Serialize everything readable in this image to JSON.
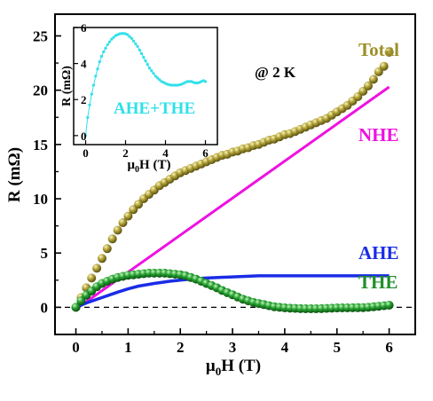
{
  "chart_data": [
    {
      "type": "line",
      "xlabel_main": "μ",
      "xlabel_sub": "0",
      "xlabel_rest": "H (T)",
      "ylabel": "R (mΩ)",
      "xlim": [
        -0.4,
        6.5
      ],
      "ylim": [
        -2.5,
        27
      ],
      "xticks": [
        "0",
        "1",
        "2",
        "3",
        "4",
        "5",
        "6"
      ],
      "yticks": [
        "0",
        "5",
        "10",
        "15",
        "20",
        "25"
      ],
      "annotation": "@ 2 K",
      "zero_line": "dashed",
      "series": [
        {
          "name": "Total",
          "marker": "sphere",
          "color": "#9c8f28",
          "x": [
            0,
            0.1,
            0.2,
            0.3,
            0.4,
            0.5,
            0.6,
            0.7,
            0.8,
            0.9,
            1.0,
            1.1,
            1.2,
            1.3,
            1.4,
            1.5,
            1.6,
            1.7,
            1.8,
            1.9,
            2.0,
            2.1,
            2.2,
            2.3,
            2.4,
            2.5,
            2.6,
            2.7,
            2.8,
            2.9,
            3.0,
            3.1,
            3.2,
            3.3,
            3.4,
            3.5,
            3.6,
            3.7,
            3.8,
            3.9,
            4.0,
            4.1,
            4.2,
            4.3,
            4.4,
            4.5,
            4.6,
            4.7,
            4.8,
            4.9,
            5.0,
            5.1,
            5.2,
            5.3,
            5.4,
            5.5,
            5.6,
            5.7,
            5.8,
            5.9,
            6.0
          ],
          "y": [
            0,
            0.9,
            1.8,
            2.7,
            3.6,
            4.5,
            5.4,
            6.3,
            7.1,
            7.8,
            8.4,
            9.0,
            9.5,
            10.0,
            10.4,
            10.8,
            11.2,
            11.5,
            11.8,
            12.1,
            12.4,
            12.6,
            12.8,
            13.0,
            13.2,
            13.4,
            13.6,
            13.8,
            14.0,
            14.1,
            14.3,
            14.4,
            14.6,
            14.7,
            14.9,
            15.0,
            15.2,
            15.4,
            15.5,
            15.7,
            15.9,
            16.0,
            16.2,
            16.4,
            16.6,
            16.8,
            17.0,
            17.2,
            17.4,
            17.7,
            18.0,
            18.3,
            18.6,
            19.0,
            19.4,
            19.9,
            20.4,
            21.0,
            21.7,
            22.2,
            23.5
          ]
        },
        {
          "name": "NHE",
          "marker": "line",
          "color": "#ee12e0",
          "x": [
            0.05,
            6.0
          ],
          "y": [
            0,
            20.3
          ]
        },
        {
          "name": "AHE",
          "marker": "line",
          "color": "#1a2ce6",
          "x": [
            0,
            0.2,
            0.5,
            0.8,
            1.0,
            1.2,
            1.5,
            1.8,
            2.0,
            2.3,
            2.5,
            3.0,
            3.5,
            4.0,
            5.0,
            6.0
          ],
          "y": [
            0,
            0.4,
            0.9,
            1.4,
            1.7,
            1.95,
            2.2,
            2.4,
            2.5,
            2.65,
            2.7,
            2.8,
            2.9,
            2.9,
            2.9,
            2.9
          ]
        },
        {
          "name": "THE",
          "marker": "sphere",
          "color": "#1f8f2a",
          "x": [
            0,
            0.1,
            0.2,
            0.3,
            0.4,
            0.5,
            0.6,
            0.7,
            0.8,
            0.9,
            1.0,
            1.1,
            1.2,
            1.3,
            1.4,
            1.5,
            1.6,
            1.7,
            1.8,
            1.9,
            2.0,
            2.1,
            2.2,
            2.3,
            2.4,
            2.5,
            2.6,
            2.7,
            2.8,
            2.9,
            3.0,
            3.1,
            3.2,
            3.3,
            3.4,
            3.5,
            3.6,
            3.7,
            3.8,
            3.9,
            4.0,
            4.1,
            4.2,
            4.3,
            4.4,
            4.5,
            4.6,
            4.7,
            4.8,
            4.9,
            5.0,
            5.1,
            5.2,
            5.3,
            5.4,
            5.5,
            5.6,
            5.7,
            5.8,
            5.9,
            6.0
          ],
          "y": [
            0,
            0.6,
            1.1,
            1.5,
            1.9,
            2.2,
            2.4,
            2.6,
            2.75,
            2.85,
            2.95,
            3.0,
            3.05,
            3.1,
            3.15,
            3.15,
            3.15,
            3.15,
            3.1,
            3.05,
            3.0,
            2.9,
            2.75,
            2.6,
            2.4,
            2.2,
            2.0,
            1.8,
            1.55,
            1.35,
            1.15,
            0.95,
            0.75,
            0.6,
            0.45,
            0.35,
            0.25,
            0.15,
            0.05,
            0.0,
            -0.05,
            -0.08,
            -0.1,
            -0.12,
            -0.13,
            -0.13,
            -0.13,
            -0.12,
            -0.1,
            -0.08,
            -0.06,
            -0.05,
            -0.05,
            -0.04,
            -0.03,
            -0.02,
            0.0,
            0.05,
            0.1,
            0.15,
            0.2
          ]
        }
      ]
    },
    {
      "type": "line",
      "xlabel_main": "μ",
      "xlabel_sub": "0",
      "xlabel_rest": "H (T)",
      "ylabel": "R (mΩ)",
      "xlim": [
        -0.6,
        6.6
      ],
      "ylim": [
        -0.5,
        6
      ],
      "xticks": [
        "0",
        "2",
        "4",
        "6"
      ],
      "yticks": [
        "0",
        "2",
        "4",
        "6"
      ],
      "series": [
        {
          "name": "AHE+THE",
          "marker": "small-dot",
          "color": "#2fe0ea",
          "x": [
            0,
            0.1,
            0.2,
            0.3,
            0.4,
            0.5,
            0.6,
            0.7,
            0.8,
            0.9,
            1.0,
            1.1,
            1.2,
            1.3,
            1.4,
            1.5,
            1.6,
            1.7,
            1.8,
            1.9,
            2.0,
            2.1,
            2.2,
            2.3,
            2.4,
            2.5,
            2.6,
            2.7,
            2.8,
            2.9,
            3.0,
            3.1,
            3.2,
            3.3,
            3.4,
            3.5,
            3.6,
            3.7,
            3.8,
            3.9,
            4.0,
            4.1,
            4.2,
            4.3,
            4.4,
            4.5,
            4.6,
            4.7,
            4.8,
            4.9,
            5.0,
            5.1,
            5.2,
            5.3,
            5.4,
            5.5,
            5.6,
            5.7,
            5.8,
            5.9,
            6.0
          ],
          "y": [
            0,
            1.0,
            1.7,
            2.3,
            2.8,
            3.3,
            3.7,
            4.1,
            4.4,
            4.65,
            4.85,
            5.05,
            5.2,
            5.35,
            5.45,
            5.55,
            5.6,
            5.65,
            5.67,
            5.67,
            5.65,
            5.6,
            5.5,
            5.4,
            5.25,
            5.1,
            4.95,
            4.75,
            4.55,
            4.35,
            4.15,
            3.95,
            3.75,
            3.6,
            3.45,
            3.3,
            3.2,
            3.1,
            3.0,
            2.95,
            2.9,
            2.85,
            2.82,
            2.8,
            2.8,
            2.8,
            2.8,
            2.82,
            2.85,
            2.9,
            2.95,
            3.0,
            3.0,
            3.0,
            2.95,
            2.92,
            2.92,
            2.95,
            3.0,
            3.05,
            3.0
          ]
        }
      ]
    }
  ]
}
